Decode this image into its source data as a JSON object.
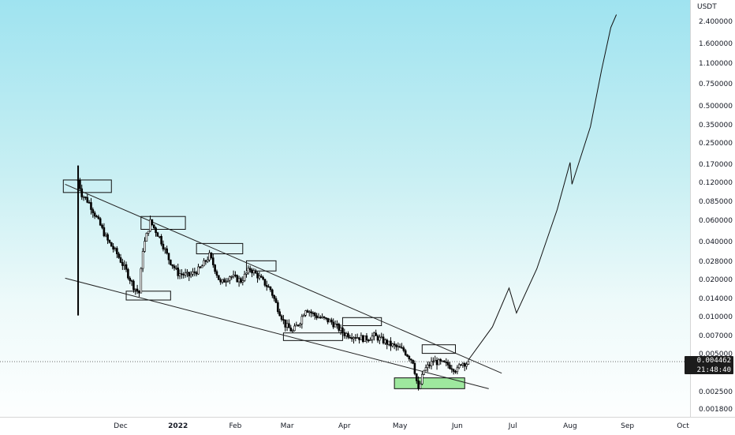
{
  "chart_data": {
    "type": "candlestick",
    "symbol_currency": "USDT",
    "y_scale": "log",
    "y_ticks": [
      "2.400000",
      "1.600000",
      "1.100000",
      "0.750000",
      "0.500000",
      "0.350000",
      "0.250000",
      "0.170000",
      "0.120000",
      "0.085000",
      "0.060000",
      "0.040000",
      "0.028000",
      "0.020000",
      "0.014000",
      "0.010000",
      "0.007000",
      "0.005000",
      "0.002500",
      "0.001800"
    ],
    "y_tick_values": [
      2.4,
      1.6,
      1.1,
      0.75,
      0.5,
      0.35,
      0.25,
      0.17,
      0.12,
      0.085,
      0.06,
      0.04,
      0.028,
      0.02,
      0.014,
      0.01,
      0.007,
      0.005,
      0.0025,
      0.0018
    ],
    "x_ticks": [
      {
        "label": "Dec",
        "date": "2021-12-01",
        "bold": false
      },
      {
        "label": "2022",
        "date": "2022-01-01",
        "bold": true
      },
      {
        "label": "Feb",
        "date": "2022-02-01",
        "bold": false
      },
      {
        "label": "Mar",
        "date": "2022-03-01",
        "bold": false
      },
      {
        "label": "Apr",
        "date": "2022-04-01",
        "bold": false
      },
      {
        "label": "May",
        "date": "2022-05-01",
        "bold": false
      },
      {
        "label": "Jun",
        "date": "2022-06-01",
        "bold": false
      },
      {
        "label": "Jul",
        "date": "2022-07-01",
        "bold": false
      },
      {
        "label": "Aug",
        "date": "2022-08-01",
        "bold": false
      },
      {
        "label": "Sep",
        "date": "2022-09-01",
        "bold": false
      },
      {
        "label": "Oct",
        "date": "2022-10-01",
        "bold": false
      }
    ],
    "last_price": "0.004462",
    "countdown": "21:48:40",
    "price_path": [
      [
        "2021-11-08",
        0.13
      ],
      [
        "2021-11-10",
        0.1
      ],
      [
        "2021-11-14",
        0.085
      ],
      [
        "2021-11-19",
        0.06
      ],
      [
        "2021-11-24",
        0.042
      ],
      [
        "2021-11-29",
        0.033
      ],
      [
        "2021-12-04",
        0.024
      ],
      [
        "2021-12-08",
        0.018
      ],
      [
        "2021-12-11",
        0.016
      ],
      [
        "2021-12-13",
        0.036
      ],
      [
        "2021-12-17",
        0.06
      ],
      [
        "2021-12-22",
        0.045
      ],
      [
        "2021-12-27",
        0.03
      ],
      [
        "2022-01-01",
        0.023
      ],
      [
        "2022-01-07",
        0.022
      ],
      [
        "2022-01-13",
        0.025
      ],
      [
        "2022-01-18",
        0.032
      ],
      [
        "2022-01-21",
        0.025
      ],
      [
        "2022-01-24",
        0.019
      ],
      [
        "2022-01-29",
        0.022
      ],
      [
        "2022-02-04",
        0.02
      ],
      [
        "2022-02-09",
        0.025
      ],
      [
        "2022-02-13",
        0.022
      ],
      [
        "2022-02-20",
        0.017
      ],
      [
        "2022-02-24",
        0.012
      ],
      [
        "2022-02-28",
        0.0088
      ],
      [
        "2022-03-04",
        0.0078
      ],
      [
        "2022-03-08",
        0.0095
      ],
      [
        "2022-03-11",
        0.012
      ],
      [
        "2022-03-16",
        0.0105
      ],
      [
        "2022-03-25",
        0.0093
      ],
      [
        "2022-04-01",
        0.0075
      ],
      [
        "2022-04-06",
        0.0072
      ],
      [
        "2022-04-12",
        0.0068
      ],
      [
        "2022-04-17",
        0.0072
      ],
      [
        "2022-04-25",
        0.0062
      ],
      [
        "2022-05-03",
        0.0055
      ],
      [
        "2022-05-08",
        0.0045
      ],
      [
        "2022-05-11",
        0.0026
      ],
      [
        "2022-05-14",
        0.0038
      ],
      [
        "2022-05-19",
        0.0045
      ],
      [
        "2022-05-27",
        0.0042
      ],
      [
        "2022-06-01",
        0.0038
      ],
      [
        "2022-06-03",
        0.0044
      ],
      [
        "2022-06-07",
        0.0043
      ]
    ],
    "projection": [
      [
        "2022-06-07",
        0.0046
      ],
      [
        "2022-06-20",
        0.0085
      ],
      [
        "2022-06-29",
        0.0175
      ],
      [
        "2022-07-03",
        0.011
      ],
      [
        "2022-07-14",
        0.025
      ],
      [
        "2022-07-25",
        0.075
      ],
      [
        "2022-08-01",
        0.18
      ],
      [
        "2022-08-02",
        0.12
      ],
      [
        "2022-08-12",
        0.35
      ],
      [
        "2022-08-18",
        1.0
      ],
      [
        "2022-08-23",
        2.2
      ],
      [
        "2022-08-26",
        2.8
      ]
    ],
    "trendlines": [
      {
        "name": "upper",
        "from": [
          "2021-11-01",
          0.12
        ],
        "to": [
          "2022-06-25",
          0.0036
        ]
      },
      {
        "name": "lower",
        "from": [
          "2021-11-01",
          0.021
        ],
        "to": [
          "2022-06-18",
          0.0027
        ]
      }
    ],
    "zones": [
      {
        "from": "2021-10-31",
        "to": "2021-11-26",
        "lo": 0.103,
        "hi": 0.13,
        "fill": "none"
      },
      {
        "from": "2021-12-04",
        "to": "2021-12-28",
        "lo": 0.014,
        "hi": 0.0165,
        "fill": "none"
      },
      {
        "from": "2021-12-12",
        "to": "2022-01-05",
        "lo": 0.052,
        "hi": 0.066,
        "fill": "none"
      },
      {
        "from": "2022-01-11",
        "to": "2022-02-05",
        "lo": 0.033,
        "hi": 0.04,
        "fill": "none"
      },
      {
        "from": "2022-02-07",
        "to": "2022-02-23",
        "lo": 0.024,
        "hi": 0.029,
        "fill": "none"
      },
      {
        "from": "2022-02-27",
        "to": "2022-03-31",
        "lo": 0.0066,
        "hi": 0.0076,
        "fill": "none"
      },
      {
        "from": "2022-03-31",
        "to": "2022-04-21",
        "lo": 0.0087,
        "hi": 0.0101,
        "fill": "none"
      },
      {
        "from": "2022-05-13",
        "to": "2022-05-31",
        "lo": 0.0052,
        "hi": 0.0061,
        "fill": "none"
      },
      {
        "from": "2022-04-28",
        "to": "2022-06-05",
        "lo": 0.0027,
        "hi": 0.0033,
        "fill": "#9ee89e"
      }
    ],
    "grid": false,
    "legend": "none"
  }
}
